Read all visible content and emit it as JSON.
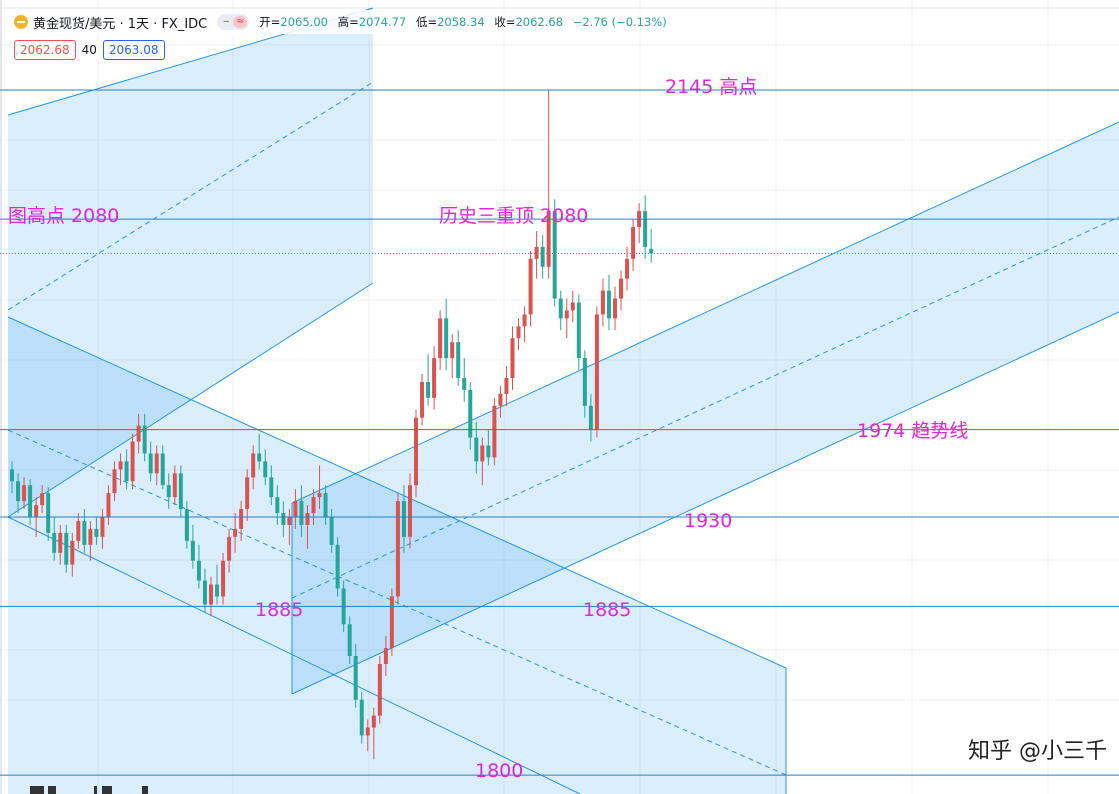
{
  "legend": {
    "title": "黄金现货/美元 · 1天 · FX_IDC",
    "open_label": "开=",
    "open": "2065.00",
    "high_label": "高=",
    "high": "2074.77",
    "low_label": "低=",
    "low": "2058.34",
    "close_label": "收=",
    "close": "2062.68",
    "change": "−2.76 (−0.13%)",
    "pill_left": "‒",
    "pill_right": "≈"
  },
  "prices": {
    "bid": "2062.68",
    "spread": "40",
    "ask": "2063.08"
  },
  "watermark": "知乎 @小三千",
  "colors": {
    "up": "#d9534f",
    "down": "#26a69a",
    "channel": "#2196f3",
    "annotation": "#e026d6"
  },
  "annotations": [
    "2145 高点",
    "图高点 2080",
    "历史三重顶 2080",
    "1974 趋势线",
    "1930",
    "1885",
    "1885",
    "1800"
  ],
  "chart_data": {
    "type": "candlestick",
    "title": "黄金现货/美元 · 1天 · FX_IDC",
    "horizontal_levels": [
      2145,
      2080,
      1974,
      1930,
      1885,
      1800
    ],
    "last_close": 2062.68,
    "candles": [
      [
        1954,
        1958,
        1942,
        1948
      ],
      [
        1948,
        1952,
        1932,
        1938
      ],
      [
        1938,
        1950,
        1934,
        1946
      ],
      [
        1946,
        1949,
        1926,
        1930
      ],
      [
        1930,
        1940,
        1920,
        1936
      ],
      [
        1936,
        1946,
        1932,
        1942
      ],
      [
        1942,
        1945,
        1918,
        1922
      ],
      [
        1922,
        1930,
        1908,
        1912
      ],
      [
        1912,
        1926,
        1906,
        1922
      ],
      [
        1922,
        1926,
        1902,
        1906
      ],
      [
        1906,
        1922,
        1900,
        1918
      ],
      [
        1918,
        1932,
        1914,
        1928
      ],
      [
        1928,
        1934,
        1912,
        1916
      ],
      [
        1916,
        1928,
        1908,
        1924
      ],
      [
        1924,
        1930,
        1916,
        1920
      ],
      [
        1920,
        1934,
        1914,
        1930
      ],
      [
        1930,
        1946,
        1926,
        1942
      ],
      [
        1942,
        1958,
        1938,
        1954
      ],
      [
        1954,
        1962,
        1946,
        1958
      ],
      [
        1958,
        1964,
        1944,
        1948
      ],
      [
        1948,
        1972,
        1944,
        1968
      ],
      [
        1968,
        1982,
        1962,
        1976
      ],
      [
        1976,
        1982,
        1958,
        1962
      ],
      [
        1962,
        1968,
        1948,
        1952
      ],
      [
        1952,
        1966,
        1946,
        1962
      ],
      [
        1962,
        1966,
        1944,
        1946
      ],
      [
        1946,
        1952,
        1934,
        1940
      ],
      [
        1940,
        1956,
        1936,
        1952
      ],
      [
        1952,
        1956,
        1930,
        1934
      ],
      [
        1934,
        1938,
        1914,
        1918
      ],
      [
        1918,
        1926,
        1904,
        1908
      ],
      [
        1908,
        1916,
        1894,
        1898
      ],
      [
        1898,
        1904,
        1882,
        1886
      ],
      [
        1886,
        1900,
        1880,
        1896
      ],
      [
        1896,
        1906,
        1886,
        1890
      ],
      [
        1890,
        1912,
        1886,
        1908
      ],
      [
        1908,
        1924,
        1902,
        1920
      ],
      [
        1920,
        1932,
        1912,
        1924
      ],
      [
        1924,
        1938,
        1918,
        1934
      ],
      [
        1934,
        1954,
        1928,
        1950
      ],
      [
        1950,
        1966,
        1944,
        1962
      ],
      [
        1962,
        1972,
        1954,
        1958
      ],
      [
        1958,
        1964,
        1946,
        1950
      ],
      [
        1950,
        1956,
        1936,
        1940
      ],
      [
        1940,
        1946,
        1926,
        1932
      ],
      [
        1932,
        1938,
        1920,
        1926
      ],
      [
        1926,
        1934,
        1916,
        1930
      ],
      [
        1930,
        1944,
        1924,
        1938
      ],
      [
        1938,
        1946,
        1920,
        1926
      ],
      [
        1926,
        1936,
        1914,
        1932
      ],
      [
        1932,
        1944,
        1926,
        1940
      ],
      [
        1940,
        1956,
        1934,
        1942
      ],
      [
        1942,
        1946,
        1926,
        1930
      ],
      [
        1930,
        1934,
        1912,
        1916
      ],
      [
        1916,
        1920,
        1890,
        1894
      ],
      [
        1894,
        1898,
        1872,
        1876
      ],
      [
        1876,
        1880,
        1856,
        1860
      ],
      [
        1860,
        1866,
        1834,
        1838
      ],
      [
        1838,
        1842,
        1816,
        1820
      ],
      [
        1820,
        1828,
        1812,
        1824
      ],
      [
        1824,
        1834,
        1808,
        1830
      ],
      [
        1830,
        1860,
        1826,
        1856
      ],
      [
        1856,
        1870,
        1850,
        1864
      ],
      [
        1864,
        1894,
        1860,
        1890
      ],
      [
        1890,
        1942,
        1886,
        1938
      ],
      [
        1938,
        1946,
        1912,
        1920
      ],
      [
        1920,
        1952,
        1914,
        1946
      ],
      [
        1946,
        1984,
        1940,
        1980
      ],
      [
        1980,
        2002,
        1976,
        1998
      ],
      [
        1998,
        2012,
        1986,
        1990
      ],
      [
        1990,
        2016,
        1984,
        2010
      ],
      [
        2010,
        2034,
        2004,
        2030
      ],
      [
        2030,
        2040,
        2004,
        2010
      ],
      [
        2010,
        2022,
        2000,
        2018
      ],
      [
        2018,
        2024,
        1996,
        2000
      ],
      [
        2000,
        2010,
        1988,
        1994
      ],
      [
        1994,
        1998,
        1964,
        1970
      ],
      [
        1970,
        1978,
        1952,
        1958
      ],
      [
        1958,
        1970,
        1946,
        1966
      ],
      [
        1966,
        1974,
        1956,
        1960
      ],
      [
        1960,
        1990,
        1956,
        1986
      ],
      [
        1986,
        1996,
        1980,
        1992
      ],
      [
        1992,
        2006,
        1986,
        2000
      ],
      [
        2000,
        2026,
        1994,
        2020
      ],
      [
        2020,
        2030,
        2014,
        2026
      ],
      [
        2026,
        2036,
        2018,
        2032
      ],
      [
        2032,
        2064,
        2026,
        2060
      ],
      [
        2060,
        2074,
        2050,
        2066
      ],
      [
        2066,
        2072,
        2050,
        2056
      ],
      [
        2056,
        2145,
        2050,
        2084
      ],
      [
        2084,
        2090,
        2036,
        2040
      ],
      [
        2040,
        2044,
        2024,
        2030
      ],
      [
        2030,
        2040,
        2020,
        2034
      ],
      [
        2034,
        2044,
        2028,
        2038
      ],
      [
        2038,
        2042,
        2004,
        2010
      ],
      [
        2010,
        2014,
        1980,
        1986
      ],
      [
        1986,
        1992,
        1968,
        1974
      ],
      [
        1974,
        2036,
        1970,
        2032
      ],
      [
        2032,
        2050,
        2026,
        2044
      ],
      [
        2044,
        2052,
        2024,
        2030
      ],
      [
        2030,
        2046,
        2024,
        2040
      ],
      [
        2040,
        2054,
        2034,
        2050
      ],
      [
        2050,
        2066,
        2044,
        2060
      ],
      [
        2060,
        2080,
        2054,
        2076
      ],
      [
        2076,
        2088,
        2068,
        2084
      ],
      [
        2084,
        2092,
        2060,
        2066
      ],
      [
        2065,
        2075,
        2058,
        2062.68
      ]
    ]
  }
}
